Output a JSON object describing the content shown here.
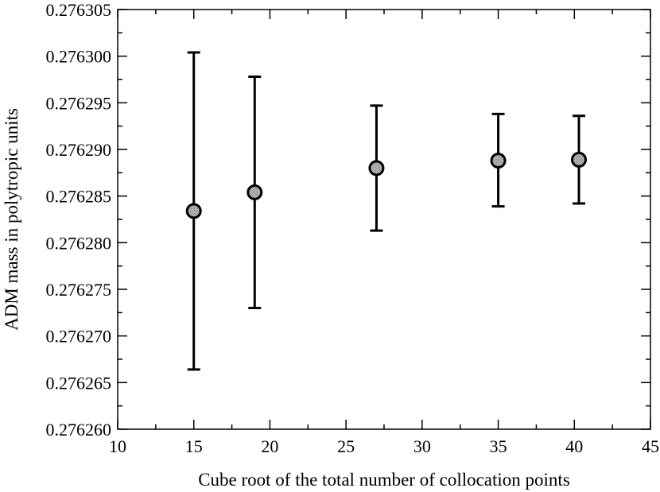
{
  "chart_data": {
    "type": "scatter",
    "title": "",
    "xlabel": "Cube root of the total number of collocation points",
    "ylabel": "ADM mass in polytropic units",
    "xlim": [
      10,
      45
    ],
    "ylim": [
      0.27626,
      0.276305
    ],
    "x_ticks": [
      "10",
      "15",
      "20",
      "25",
      "30",
      "35",
      "40",
      "45"
    ],
    "y_ticks": [
      "0.276260",
      "0.276265",
      "0.276270",
      "0.276275",
      "0.276280",
      "0.276285",
      "0.276290",
      "0.276295",
      "0.276300",
      "0.276305"
    ],
    "grid": false,
    "series": [
      {
        "x": [
          15,
          19,
          27,
          35,
          40.3
        ],
        "y": [
          0.2762834,
          0.2762854,
          0.276288,
          0.2762888,
          0.2762889
        ],
        "yerr_low": [
          0.2762664,
          0.276273,
          0.2762813,
          0.2762839,
          0.2762842
        ],
        "yerr_high": [
          0.2763004,
          0.2762978,
          0.2762947,
          0.2762938,
          0.2762936
        ]
      }
    ]
  }
}
